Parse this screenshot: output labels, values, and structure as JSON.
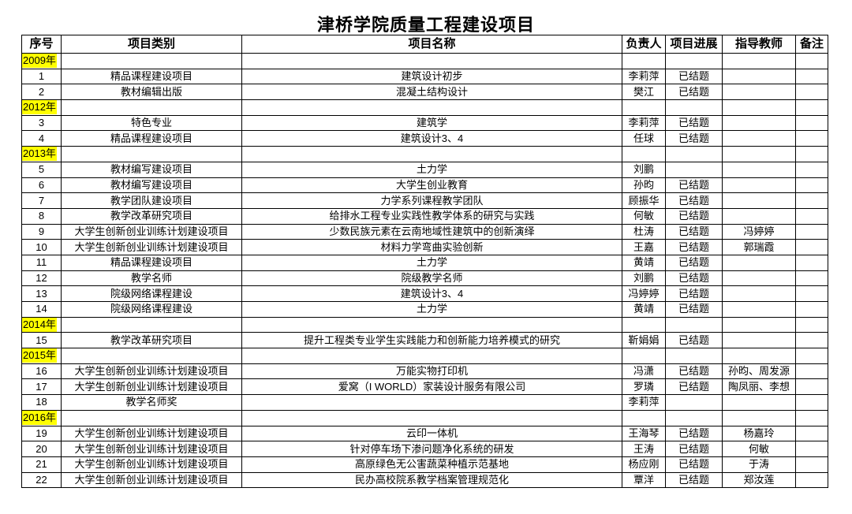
{
  "title": "津桥学院质量工程建设项目",
  "colors": {
    "year_highlight": "#ffff00",
    "border": "#000000"
  },
  "headers": [
    "序号",
    "项目类别",
    "项目名称",
    "负责人",
    "项目进展",
    "指导教师",
    "备注"
  ],
  "rows": [
    {
      "year": "2009年"
    },
    {
      "no": "1",
      "category": "精品课程建设项目",
      "name": "建筑设计初步",
      "leader": "李莉萍",
      "progress": "已结题",
      "advisor": "",
      "note": ""
    },
    {
      "no": "2",
      "category": "教材编辑出版",
      "name": "混凝土结构设计",
      "leader": "樊江",
      "progress": "已结题",
      "advisor": "",
      "note": ""
    },
    {
      "year": "2012年"
    },
    {
      "no": "3",
      "category": "特色专业",
      "name": "建筑学",
      "leader": "李莉萍",
      "progress": "已结题",
      "advisor": "",
      "note": ""
    },
    {
      "no": "4",
      "category": "精品课程建设项目",
      "name": "建筑设计3、4",
      "leader": "任球",
      "progress": "已结题",
      "advisor": "",
      "note": ""
    },
    {
      "year": "2013年"
    },
    {
      "no": "5",
      "category": "教材编写建设项目",
      "name": "土力学",
      "leader": "刘鹏",
      "progress": "",
      "advisor": "",
      "note": ""
    },
    {
      "no": "6",
      "category": "教材编写建设项目",
      "name": "大学生创业教育",
      "leader": "孙昀",
      "progress": "已结题",
      "advisor": "",
      "note": ""
    },
    {
      "no": "7",
      "category": "教学团队建设项目",
      "name": "力学系列课程教学团队",
      "leader": "顾振华",
      "progress": "已结题",
      "advisor": "",
      "note": ""
    },
    {
      "no": "8",
      "category": "教学改革研究项目",
      "name": "给排水工程专业实践性教学体系的研究与实践",
      "leader": "何敏",
      "progress": "已结题",
      "advisor": "",
      "note": ""
    },
    {
      "no": "9",
      "category": "大学生创新创业训练计划建设项目",
      "name": "少数民族元素在云南地域性建筑中的创新演绎",
      "leader": "杜涛",
      "progress": "已结题",
      "advisor": "冯婷婷",
      "note": ""
    },
    {
      "no": "10",
      "category": "大学生创新创业训练计划建设项目",
      "name": "材料力学弯曲实验创新",
      "leader": "王嘉",
      "progress": "已结题",
      "advisor": "郭瑞霞",
      "note": ""
    },
    {
      "no": "11",
      "category": "精品课程建设项目",
      "name": "土力学",
      "leader": "黄靖",
      "progress": "已结题",
      "advisor": "",
      "note": ""
    },
    {
      "no": "12",
      "category": "教学名师",
      "name": "院级教学名师",
      "leader": "刘鹏",
      "progress": "已结题",
      "advisor": "",
      "note": ""
    },
    {
      "no": "13",
      "category": "院级网络课程建设",
      "name": "建筑设计3、4",
      "leader": "冯婷婷",
      "progress": "已结题",
      "advisor": "",
      "note": ""
    },
    {
      "no": "14",
      "category": "院级网络课程建设",
      "name": "土力学",
      "leader": "黄靖",
      "progress": "已结题",
      "advisor": "",
      "note": ""
    },
    {
      "year": "2014年"
    },
    {
      "no": "15",
      "category": "教学改革研究项目",
      "name": "提升工程类专业学生实践能力和创新能力培养模式的研究",
      "leader": "靳娟娟",
      "progress": "已结题",
      "advisor": "",
      "note": ""
    },
    {
      "year": "2015年"
    },
    {
      "no": "16",
      "category": "大学生创新创业训练计划建设项目",
      "name": "万能实物打印机",
      "leader": "冯潇",
      "progress": "已结题",
      "advisor": "孙昀、周发源",
      "note": ""
    },
    {
      "no": "17",
      "category": "大学生创新创业训练计划建设项目",
      "name": "爱窝（I WORLD）家装设计服务有限公司",
      "leader": "罗璘",
      "progress": "已结题",
      "advisor": "陶凤丽、李想",
      "note": ""
    },
    {
      "no": "18",
      "category": "教学名师奖",
      "name": "",
      "leader": "李莉萍",
      "progress": "",
      "advisor": "",
      "note": ""
    },
    {
      "year": "2016年"
    },
    {
      "no": "19",
      "category": "大学生创新创业训练计划建设项目",
      "name": "云印一体机",
      "leader": "王海琴",
      "progress": "已结题",
      "advisor": "杨嘉玲",
      "note": ""
    },
    {
      "no": "20",
      "category": "大学生创新创业训练计划建设项目",
      "name": "针对停车场下渗问题净化系统的研发",
      "leader": "王涛",
      "progress": "已结题",
      "advisor": "何敏",
      "note": ""
    },
    {
      "no": "21",
      "category": "大学生创新创业训练计划建设项目",
      "name": "高原绿色无公害蔬菜种植示范基地",
      "leader": "杨应刚",
      "progress": "已结题",
      "advisor": "于涛",
      "note": ""
    },
    {
      "no": "22",
      "category": "大学生创新创业训练计划建设项目",
      "name": "民办高校院系教学档案管理规范化",
      "leader": "覃洋",
      "progress": "已结题",
      "advisor": "郑汝莲",
      "note": ""
    }
  ]
}
